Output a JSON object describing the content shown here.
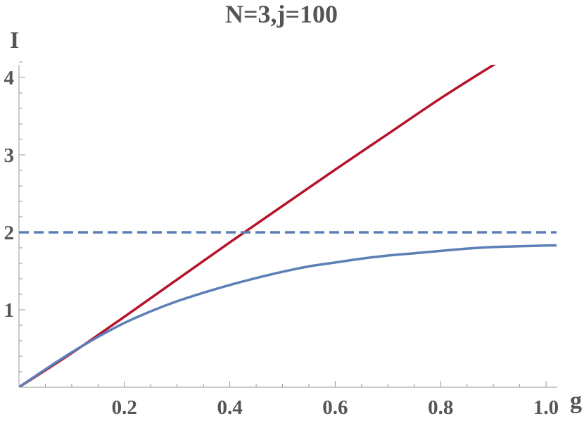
{
  "chart_data": {
    "type": "line",
    "title": "N=3,j=100",
    "xlabel": "g",
    "ylabel": "I",
    "xlim": [
      0,
      1.02
    ],
    "ylim": [
      0,
      4.2
    ],
    "x_ticks": [
      0.2,
      0.4,
      0.6,
      0.8,
      1.0
    ],
    "x_tick_labels": [
      "0.2",
      "0.4",
      "0.6",
      "0.8",
      "1.0"
    ],
    "y_ticks": [
      1,
      2,
      3,
      4
    ],
    "y_tick_labels": [
      "1",
      "2",
      "3",
      "4"
    ],
    "grid": false,
    "series": [
      {
        "style": "solid",
        "color": "#b5132a",
        "x": [
          0,
          0.1,
          0.2,
          0.3,
          0.4,
          0.5,
          0.6,
          0.7,
          0.8,
          0.9,
          0.94
        ],
        "y": [
          0,
          0.44,
          0.91,
          1.39,
          1.87,
          2.34,
          2.81,
          3.27,
          3.73,
          4.16,
          4.32
        ]
      },
      {
        "style": "solid",
        "color": "#5b7fb6",
        "x": [
          0,
          0.05,
          0.1,
          0.15,
          0.2,
          0.25,
          0.3,
          0.35,
          0.4,
          0.45,
          0.5,
          0.55,
          0.6,
          0.65,
          0.7,
          0.75,
          0.8,
          0.85,
          0.9,
          0.95,
          1.0,
          1.02
        ],
        "y": [
          0,
          0.23,
          0.45,
          0.65,
          0.83,
          0.98,
          1.11,
          1.22,
          1.32,
          1.41,
          1.49,
          1.56,
          1.61,
          1.66,
          1.7,
          1.73,
          1.76,
          1.79,
          1.81,
          1.82,
          1.83,
          1.83
        ]
      },
      {
        "style": "dashed",
        "color": "#5b7fb6",
        "x": [
          0,
          1.02
        ],
        "y": [
          2,
          2
        ]
      }
    ]
  }
}
